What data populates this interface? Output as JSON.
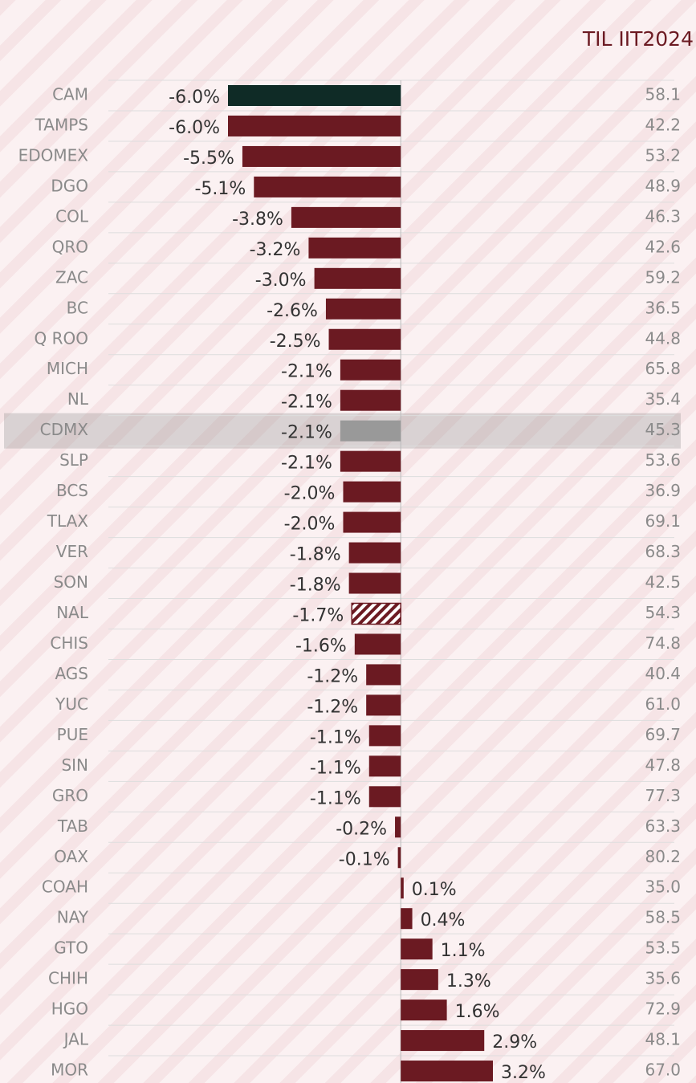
{
  "chart_data": {
    "type": "bar",
    "orientation": "horizontal",
    "categories": [
      "CAM",
      "TAMPS",
      "EDOMEX",
      "DGO",
      "COL",
      "QRO",
      "ZAC",
      "BC",
      "Q ROO",
      "MICH",
      "NL",
      "CDMX",
      "SLP",
      "BCS",
      "TLAX",
      "VER",
      "SON",
      "NAL",
      "CHIS",
      "AGS",
      "YUC",
      "PUE",
      "SIN",
      "GRO",
      "TAB",
      "OAX",
      "COAH",
      "NAY",
      "GTO",
      "CHIH",
      "HGO",
      "JAL",
      "MOR"
    ],
    "values": [
      -6.0,
      -6.0,
      -5.5,
      -5.1,
      -3.8,
      -3.2,
      -3.0,
      -2.6,
      -2.5,
      -2.1,
      -2.1,
      -2.1,
      -2.1,
      -2.0,
      -2.0,
      -1.8,
      -1.8,
      -1.7,
      -1.6,
      -1.2,
      -1.2,
      -1.1,
      -1.1,
      -1.1,
      -0.2,
      -0.1,
      0.1,
      0.4,
      1.1,
      1.3,
      1.6,
      2.9,
      3.2
    ],
    "value_labels": [
      "-6.0%",
      "-6.0%",
      "-5.5%",
      "-5.1%",
      "-3.8%",
      "-3.2%",
      "-3.0%",
      "-2.6%",
      "-2.5%",
      "-2.1%",
      "-2.1%",
      "-2.1%",
      "-2.1%",
      "-2.0%",
      "-2.0%",
      "-1.8%",
      "-1.8%",
      "-1.7%",
      "-1.6%",
      "-1.2%",
      "-1.2%",
      "-1.1%",
      "-1.1%",
      "-1.1%",
      "-0.2%",
      "-0.1%",
      "0.1%",
      "0.4%",
      "1.1%",
      "1.3%",
      "1.6%",
      "2.9%",
      "3.2%"
    ],
    "bar_colors": [
      "#0f2b26",
      "#6b1a22",
      "#6b1a22",
      "#6b1a22",
      "#6b1a22",
      "#6b1a22",
      "#6b1a22",
      "#6b1a22",
      "#6b1a22",
      "#6b1a22",
      "#6b1a22",
      "#999999",
      "#6b1a22",
      "#6b1a22",
      "#6b1a22",
      "#6b1a22",
      "#6b1a22",
      "hatch",
      "#6b1a22",
      "#6b1a22",
      "#6b1a22",
      "#6b1a22",
      "#6b1a22",
      "#6b1a22",
      "#6b1a22",
      "#6b1a22",
      "#6b1a22",
      "#6b1a22",
      "#6b1a22",
      "#6b1a22",
      "#6b1a22",
      "#6b1a22",
      "#6b1a22"
    ],
    "highlight_row": 11,
    "xlim": [
      -6,
      3.2
    ],
    "side_column": {
      "title": "TIL IIT2024",
      "labels": [
        "58.1",
        "42.2",
        "53.2",
        "48.9",
        "46.3",
        "42.6",
        "59.2",
        "36.5",
        "44.8",
        "65.8",
        "35.4",
        "45.3",
        "53.6",
        "36.9",
        "69.1",
        "68.3",
        "42.5",
        "54.3",
        "74.8",
        "40.4",
        "61.0",
        "69.7",
        "47.8",
        "77.3",
        "63.3",
        "80.2",
        "35.0",
        "58.5",
        "53.5",
        "35.6",
        "72.9",
        "48.1",
        "67.0"
      ]
    }
  }
}
